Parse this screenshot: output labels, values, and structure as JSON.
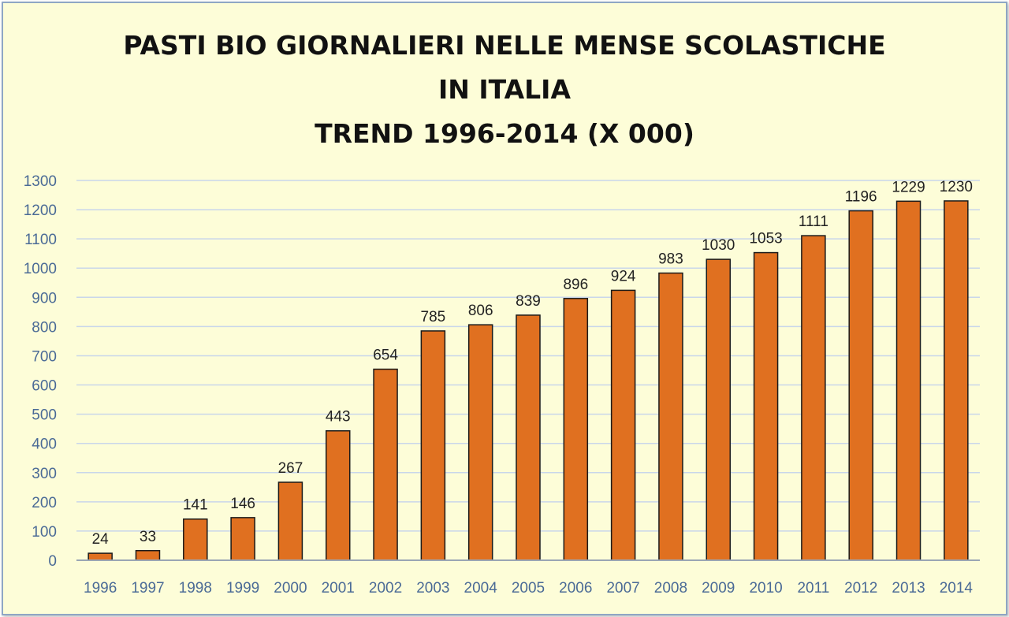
{
  "chart_data": {
    "type": "bar",
    "title": [
      "PASTI BIO GIORNALIERI NELLE MENSE SCOLASTICHE",
      "IN ITALIA",
      "TREND 1996-2014 (X 000)"
    ],
    "categories": [
      "1996",
      "1997",
      "1998",
      "1999",
      "2000",
      "2001",
      "2002",
      "2003",
      "2004",
      "2005",
      "2006",
      "2007",
      "2008",
      "2009",
      "2010",
      "2011",
      "2012",
      "2013",
      "2014"
    ],
    "values": [
      24,
      33,
      141,
      146,
      267,
      443,
      654,
      785,
      806,
      839,
      896,
      924,
      983,
      1030,
      1053,
      1111,
      1196,
      1229,
      1230
    ],
    "ylim": [
      0,
      1300
    ],
    "yticks": [
      0,
      100,
      200,
      300,
      400,
      500,
      600,
      700,
      800,
      900,
      1000,
      1100,
      1200,
      1300
    ],
    "grid": true,
    "legend": "none",
    "colors": {
      "bar_fill": "#e07020",
      "bar_stroke": "#1a1a1a",
      "grid": "#c9d6ea",
      "tick_text": "#4a6a96",
      "background": "#fdfdd8"
    }
  }
}
